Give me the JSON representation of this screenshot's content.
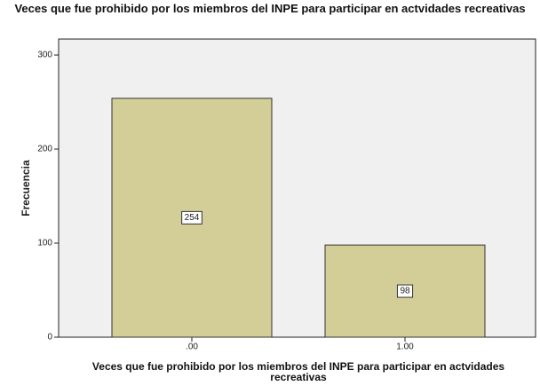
{
  "chart_data": {
    "type": "bar",
    "title": "Veces que fue prohibido por los miembros del INPE para participar en actvidades recreativas",
    "x_label": "Veces que fue prohibido por los miembros del INPE para participar en actvidades recreativas",
    "y_label": "Frecuencia",
    "categories": [
      ".00",
      "1.00"
    ],
    "values": [
      254,
      98
    ],
    "color": "#d3ce97",
    "ylim": [
      0,
      317
    ],
    "yticks": [
      0,
      100,
      200,
      300
    ],
    "grid": false
  }
}
